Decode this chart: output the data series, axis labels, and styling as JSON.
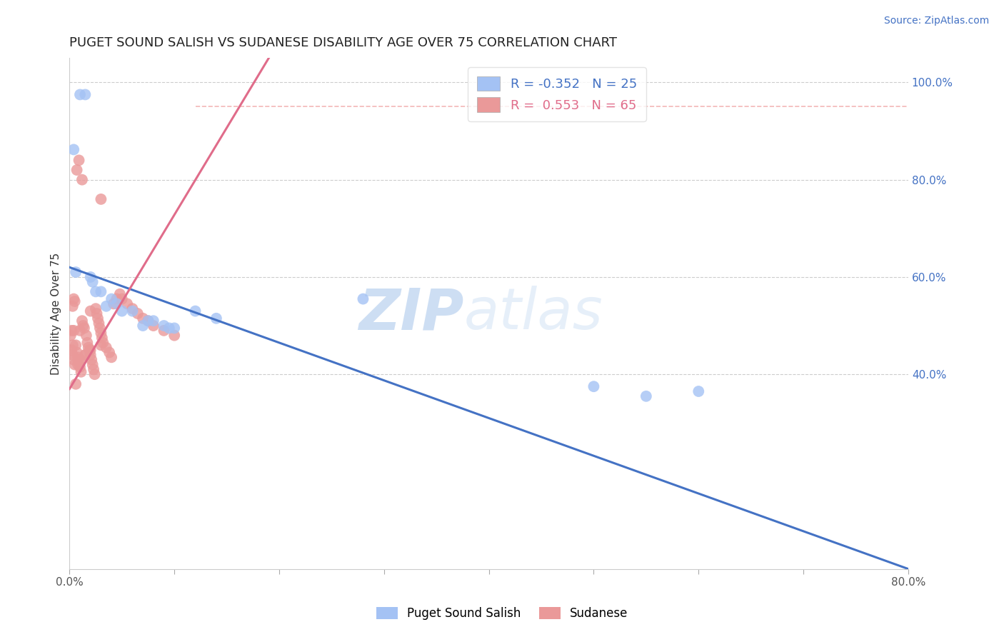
{
  "title": "PUGET SOUND SALISH VS SUDANESE DISABILITY AGE OVER 75 CORRELATION CHART",
  "source_text": "Source: ZipAtlas.com",
  "ylabel": "Disability Age Over 75",
  "watermark_zip": "ZIP",
  "watermark_atlas": "atlas",
  "xlim": [
    0.0,
    0.8
  ],
  "ylim": [
    0.0,
    1.05
  ],
  "xticks": [
    0.0,
    0.1,
    0.2,
    0.3,
    0.4,
    0.5,
    0.6,
    0.7,
    0.8
  ],
  "xticklabels": [
    "0.0%",
    "",
    "",
    "",
    "",
    "",
    "",
    "",
    "80.0%"
  ],
  "yticks_right": [
    0.4,
    0.6,
    0.8,
    1.0
  ],
  "yticklabels_right": [
    "40.0%",
    "60.0%",
    "80.0%",
    "100.0%"
  ],
  "grid_color": "#cccccc",
  "background_color": "#ffffff",
  "blue_color": "#a4c2f4",
  "pink_color": "#ea9999",
  "blue_line_color": "#4472c4",
  "pink_line_color": "#e06c8a",
  "diag_line_color": "#f4b8b8",
  "legend_R_blue": "-0.352",
  "legend_N_blue": "25",
  "legend_R_pink": "0.553",
  "legend_N_pink": "65",
  "label_blue": "Puget Sound Salish",
  "label_pink": "Sudanese",
  "blue_line_x0": 0.0,
  "blue_line_y0": 0.62,
  "blue_line_x1": 0.8,
  "blue_line_y1": 0.0,
  "pink_line_x0": 0.0,
  "pink_line_y0": 0.37,
  "pink_line_x1": 0.19,
  "pink_line_y1": 1.05,
  "diag_line_x0": 0.12,
  "diag_line_y0": 0.95,
  "diag_line_x1": 0.8,
  "diag_line_y1": 0.95,
  "blue_x": [
    0.01,
    0.015,
    0.004,
    0.006,
    0.022,
    0.03,
    0.04,
    0.045,
    0.06,
    0.075,
    0.09,
    0.1,
    0.05,
    0.035,
    0.025,
    0.07,
    0.08,
    0.095,
    0.12,
    0.14,
    0.5,
    0.6,
    0.28,
    0.02,
    0.55
  ],
  "blue_y": [
    0.975,
    0.975,
    0.862,
    0.61,
    0.59,
    0.57,
    0.555,
    0.545,
    0.53,
    0.51,
    0.5,
    0.495,
    0.53,
    0.54,
    0.57,
    0.5,
    0.51,
    0.495,
    0.53,
    0.515,
    0.375,
    0.365,
    0.555,
    0.6,
    0.355
  ],
  "pink_x": [
    0.002,
    0.003,
    0.004,
    0.005,
    0.006,
    0.007,
    0.008,
    0.009,
    0.01,
    0.01,
    0.011,
    0.012,
    0.013,
    0.014,
    0.015,
    0.016,
    0.017,
    0.018,
    0.019,
    0.02,
    0.02,
    0.021,
    0.022,
    0.023,
    0.024,
    0.025,
    0.026,
    0.027,
    0.028,
    0.029,
    0.03,
    0.031,
    0.032,
    0.035,
    0.038,
    0.04,
    0.042,
    0.045,
    0.048,
    0.05,
    0.055,
    0.06,
    0.065,
    0.07,
    0.075,
    0.08,
    0.09,
    0.1,
    0.03,
    0.02,
    0.015,
    0.01,
    0.008,
    0.006,
    0.004,
    0.003,
    0.002,
    0.001,
    0.005,
    0.004,
    0.003,
    0.007,
    0.009,
    0.012,
    0.03
  ],
  "pink_y": [
    0.45,
    0.44,
    0.43,
    0.42,
    0.46,
    0.445,
    0.435,
    0.425,
    0.415,
    0.49,
    0.405,
    0.51,
    0.5,
    0.495,
    0.44,
    0.48,
    0.465,
    0.455,
    0.45,
    0.44,
    0.53,
    0.43,
    0.42,
    0.41,
    0.4,
    0.535,
    0.525,
    0.515,
    0.505,
    0.495,
    0.485,
    0.475,
    0.465,
    0.455,
    0.445,
    0.435,
    0.545,
    0.555,
    0.565,
    0.555,
    0.545,
    0.535,
    0.525,
    0.515,
    0.51,
    0.5,
    0.49,
    0.48,
    0.46,
    0.45,
    0.44,
    0.43,
    0.42,
    0.38,
    0.555,
    0.54,
    0.49,
    0.48,
    0.55,
    0.49,
    0.46,
    0.82,
    0.84,
    0.8,
    0.76
  ]
}
